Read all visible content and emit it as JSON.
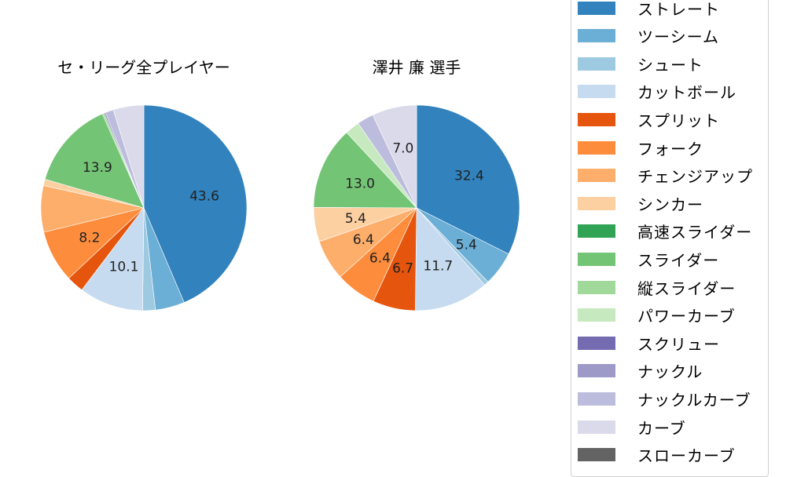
{
  "chart_data": [
    {
      "type": "pie",
      "title": "セ・リーグ全プレイヤー",
      "start_angle": 90,
      "direction": "clockwise",
      "labels_shown_threshold": 5,
      "slices": [
        {
          "name": "ストレート",
          "value": 43.6,
          "color": "#3182bd",
          "label": "43.6"
        },
        {
          "name": "ツーシーム",
          "value": 4.6,
          "color": "#6baed6",
          "label": ""
        },
        {
          "name": "シュート",
          "value": 2.0,
          "color": "#9ecae1",
          "label": ""
        },
        {
          "name": "カットボール",
          "value": 10.1,
          "color": "#c6dbef",
          "label": "10.1"
        },
        {
          "name": "スプリット",
          "value": 2.7,
          "color": "#e6550d",
          "label": ""
        },
        {
          "name": "フォーク",
          "value": 8.2,
          "color": "#fd8d3c",
          "label": "8.2"
        },
        {
          "name": "チェンジアップ",
          "value": 7.3,
          "color": "#fdae6b",
          "label": ""
        },
        {
          "name": "シンカー",
          "value": 1.0,
          "color": "#fdd0a2",
          "label": ""
        },
        {
          "name": "スライダー",
          "value": 13.9,
          "color": "#74c476",
          "label": "13.9"
        },
        {
          "name": "縦スライダー",
          "value": 0.3,
          "color": "#a1d99b",
          "label": ""
        },
        {
          "name": "スクリュー",
          "value": 0.2,
          "color": "#756bb1",
          "label": ""
        },
        {
          "name": "ナックルカーブ",
          "value": 1.3,
          "color": "#bcbddc",
          "label": ""
        },
        {
          "name": "カーブ",
          "value": 4.8,
          "color": "#dadaeb",
          "label": ""
        }
      ]
    },
    {
      "type": "pie",
      "title": "澤井 廉  選手",
      "start_angle": 90,
      "direction": "clockwise",
      "labels_shown_threshold": 5,
      "slices": [
        {
          "name": "ストレート",
          "value": 32.4,
          "color": "#3182bd",
          "label": "32.4"
        },
        {
          "name": "ツーシーム",
          "value": 5.4,
          "color": "#6baed6",
          "label": "5.4"
        },
        {
          "name": "シュート",
          "value": 0.7,
          "color": "#9ecae1",
          "label": ""
        },
        {
          "name": "カットボール",
          "value": 11.7,
          "color": "#c6dbef",
          "label": "11.7"
        },
        {
          "name": "スプリット",
          "value": 6.7,
          "color": "#e6550d",
          "label": "6.7"
        },
        {
          "name": "フォーク",
          "value": 6.4,
          "color": "#fd8d3c",
          "label": "6.4"
        },
        {
          "name": "チェンジアップ",
          "value": 6.4,
          "color": "#fdae6b",
          "label": "6.4"
        },
        {
          "name": "シンカー",
          "value": 5.4,
          "color": "#fdd0a2",
          "label": "5.4"
        },
        {
          "name": "スライダー",
          "value": 13.0,
          "color": "#74c476",
          "label": "13.0"
        },
        {
          "name": "パワーカーブ",
          "value": 2.3,
          "color": "#c7e9c0",
          "label": ""
        },
        {
          "name": "ナックルカーブ",
          "value": 2.6,
          "color": "#bcbddc",
          "label": ""
        },
        {
          "name": "カーブ",
          "value": 7.0,
          "color": "#dadaeb",
          "label": "7.0"
        }
      ]
    }
  ],
  "titles": {
    "left": "セ・リーグ全プレイヤー",
    "right": "澤井 廉  選手"
  },
  "legend": {
    "position": "right",
    "items": [
      {
        "label": "ストレート",
        "color": "#3182bd"
      },
      {
        "label": "ツーシーム",
        "color": "#6baed6"
      },
      {
        "label": "シュート",
        "color": "#9ecae1"
      },
      {
        "label": "カットボール",
        "color": "#c6dbef"
      },
      {
        "label": "スプリット",
        "color": "#e6550d"
      },
      {
        "label": "フォーク",
        "color": "#fd8d3c"
      },
      {
        "label": "チェンジアップ",
        "color": "#fdae6b"
      },
      {
        "label": "シンカー",
        "color": "#fdd0a2"
      },
      {
        "label": "高速スライダー",
        "color": "#31a354"
      },
      {
        "label": "スライダー",
        "color": "#74c476"
      },
      {
        "label": "縦スライダー",
        "color": "#a1d99b"
      },
      {
        "label": "パワーカーブ",
        "color": "#c7e9c0"
      },
      {
        "label": "スクリュー",
        "color": "#756bb1"
      },
      {
        "label": "ナックル",
        "color": "#9e9ac8"
      },
      {
        "label": "ナックルカーブ",
        "color": "#bcbddc"
      },
      {
        "label": "カーブ",
        "color": "#dadaeb"
      },
      {
        "label": "スローカーブ",
        "color": "#636363"
      }
    ]
  }
}
